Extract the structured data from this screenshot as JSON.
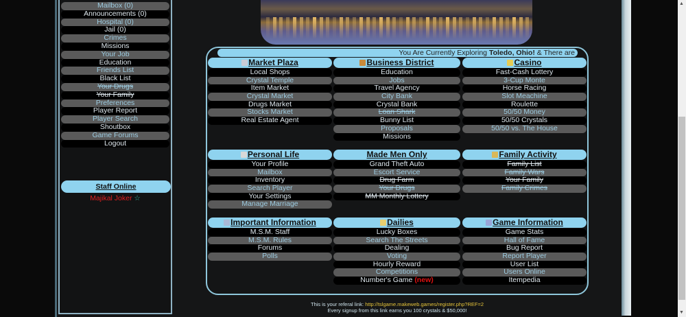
{
  "sidebar": {
    "items": [
      {
        "label": "Mailbox (0)"
      },
      {
        "label": "Announcements (0)"
      },
      {
        "label": "Hospital (0)"
      },
      {
        "label": "Jail (0)"
      },
      {
        "label": "Crimes"
      },
      {
        "label": "Missions"
      },
      {
        "label": "Your Job"
      },
      {
        "label": "Education"
      },
      {
        "label": "Friends List"
      },
      {
        "label": "Black List"
      },
      {
        "label": "Your Drugs",
        "strike": true
      },
      {
        "label": "Your Family",
        "strike": true
      },
      {
        "label": "Preferences"
      },
      {
        "label": "Player Report"
      },
      {
        "label": "Player Search"
      },
      {
        "label": "Shoutbox"
      },
      {
        "label": "Game Forums"
      },
      {
        "label": "Logout"
      }
    ],
    "staff_title": "Staff Online",
    "staff_member": "Majikal Joker",
    "staff_star": "☆"
  },
  "tour": {
    "prefix": "You Are Currently Exploring ",
    "city": "Toledo, Ohio!",
    "suffix": " & There are"
  },
  "sections": [
    {
      "title": "Market Plaza",
      "icon": "shop-icon",
      "icon_color": "#c9ccd6",
      "items": [
        {
          "label": "Local Shops"
        },
        {
          "label": "Crystal Temple"
        },
        {
          "label": "Item Market"
        },
        {
          "label": "Crystal Market"
        },
        {
          "label": "Drugs Market"
        },
        {
          "label": "Stocks Market"
        },
        {
          "label": "Real Estate Agent"
        }
      ]
    },
    {
      "title": "Business District",
      "icon": "briefcase-icon",
      "icon_color": "#c98a3a",
      "items": [
        {
          "label": "Education"
        },
        {
          "label": "Jobs"
        },
        {
          "label": "Travel Agency"
        },
        {
          "label": "City Bank"
        },
        {
          "label": "Crystal Bank"
        },
        {
          "label": "Loan Shark",
          "strike": true
        },
        {
          "label": "Bunny List"
        },
        {
          "label": "Proposals"
        },
        {
          "label": "Missions"
        }
      ]
    },
    {
      "title": "Casino",
      "icon": "coins-icon",
      "icon_color": "#e6cc55",
      "items": [
        {
          "label": "Fast-Cash Lottery"
        },
        {
          "label": "3-Cup Monte"
        },
        {
          "label": "Horse Racing"
        },
        {
          "label": "Slot Meachine"
        },
        {
          "label": "Roulette"
        },
        {
          "label": "50/50 Money"
        },
        {
          "label": "50/50 Crystals"
        },
        {
          "label": "50/50 vs. The House"
        }
      ]
    },
    {
      "title": "Personal Life",
      "icon": "phone-icon",
      "icon_color": "#d8d8d8",
      "items": [
        {
          "label": "Your Profile"
        },
        {
          "label": "Mailbox"
        },
        {
          "label": "Inventory"
        },
        {
          "label": "Search Player"
        },
        {
          "label": "Your Settings"
        },
        {
          "label": "Manage Marriage"
        }
      ]
    },
    {
      "title": "Made Men Only",
      "icon": "",
      "icon_color": "",
      "items": [
        {
          "label": "Grand Theft Auto"
        },
        {
          "label": "Escort Service"
        },
        {
          "label": "Drug Farm",
          "strike": true
        },
        {
          "label": "Your Drugs",
          "strike": true
        },
        {
          "label": "MM Monthly Lottery",
          "strike": true
        }
      ]
    },
    {
      "title": "Family Activity",
      "icon": "lock-icon",
      "icon_color": "#d9b85a",
      "items": [
        {
          "label": "Family List",
          "strike": true
        },
        {
          "label": "Family Wars",
          "strike": true
        },
        {
          "label": "Your Family",
          "strike": true
        },
        {
          "label": "Family Crimes",
          "strike": true
        }
      ]
    },
    {
      "title": "Important Information",
      "icon": "info-icon",
      "icon_color": "#a9b8d6",
      "items": [
        {
          "label": "M.S.M. Staff"
        },
        {
          "label": "M.S.M. Rules"
        },
        {
          "label": "Forums"
        },
        {
          "label": "Polls"
        }
      ]
    },
    {
      "title": "Dailies",
      "icon": "calendar-icon",
      "icon_color": "#e8d070",
      "items": [
        {
          "label": "Lucky Boxes"
        },
        {
          "label": "Search The Streets"
        },
        {
          "label": "Dealing"
        },
        {
          "label": "Voting"
        },
        {
          "label": "Hourly Reward"
        },
        {
          "label": "Competitions"
        },
        {
          "label": "Number's Game",
          "badge": "(new)"
        }
      ]
    },
    {
      "title": "Game Information",
      "icon": "monitor-icon",
      "icon_color": "#9aa6d8",
      "items": [
        {
          "label": "Game Stats"
        },
        {
          "label": "Hall of Fame"
        },
        {
          "label": "Bug Report"
        },
        {
          "label": "Report Player"
        },
        {
          "label": "User List"
        },
        {
          "label": "Users Online"
        },
        {
          "label": "Itempedia"
        }
      ]
    }
  ],
  "footer": {
    "ref_text": "This is your referal link: ",
    "ref_link": "http://tslgame.makeweb.games/register.php?REF=2",
    "signup_text": "Every signup from this link earns you 100 crystals & $50,000!"
  }
}
